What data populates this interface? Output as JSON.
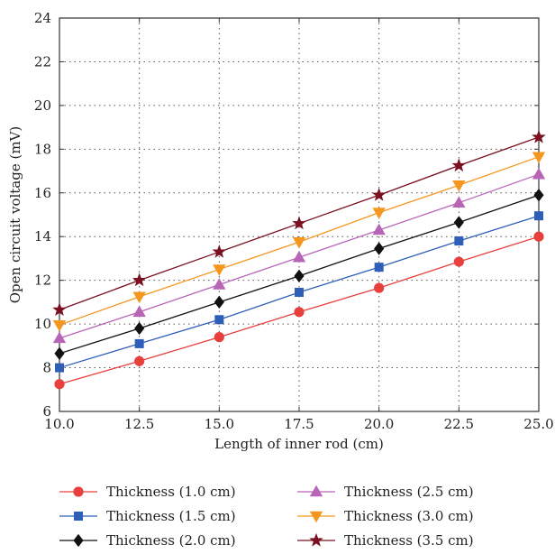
{
  "chart_data": {
    "type": "line",
    "xlabel": "Length of inner rod (cm)",
    "ylabel": "Open circuit voltage (mV)",
    "xlim": [
      10,
      25
    ],
    "ylim": [
      6,
      24
    ],
    "x_ticks": [
      "10.0",
      "12.5",
      "15.0",
      "17.5",
      "20.0",
      "22.5",
      "25.0"
    ],
    "y_ticks": [
      "6",
      "8",
      "10",
      "12",
      "14",
      "16",
      "18",
      "20",
      "22",
      "24"
    ],
    "grid": true,
    "legend_position": "bottom",
    "x": [
      10.0,
      12.5,
      15.0,
      17.5,
      20.0,
      22.5,
      25.0
    ],
    "series": [
      {
        "name": "Thickness (1.0 cm)",
        "color": "#e8403c",
        "marker": "circle",
        "values": [
          7.25,
          8.3,
          9.4,
          10.55,
          11.65,
          12.85,
          14.0
        ]
      },
      {
        "name": "Thickness (1.5 cm)",
        "color": "#2e5fb8",
        "marker": "square",
        "values": [
          8.0,
          9.1,
          10.2,
          11.45,
          12.6,
          13.8,
          14.95
        ]
      },
      {
        "name": "Thickness (2.0 cm)",
        "color": "#111111",
        "marker": "diamond",
        "values": [
          8.65,
          9.8,
          11.0,
          12.2,
          13.45,
          14.65,
          15.9
        ]
      },
      {
        "name": "Thickness (2.5 cm)",
        "color": "#b865b8",
        "marker": "triangle-up",
        "values": [
          9.35,
          10.55,
          11.8,
          13.05,
          14.3,
          15.55,
          16.85
        ]
      },
      {
        "name": "Thickness (3.0 cm)",
        "color": "#f5961e",
        "marker": "triangle-down",
        "values": [
          9.95,
          11.25,
          12.5,
          13.75,
          15.1,
          16.35,
          17.65
        ]
      },
      {
        "name": "Thickness (3.5 cm)",
        "color": "#7a1020",
        "marker": "star",
        "values": [
          10.65,
          12.0,
          13.3,
          14.6,
          15.9,
          17.25,
          18.55
        ]
      }
    ]
  }
}
